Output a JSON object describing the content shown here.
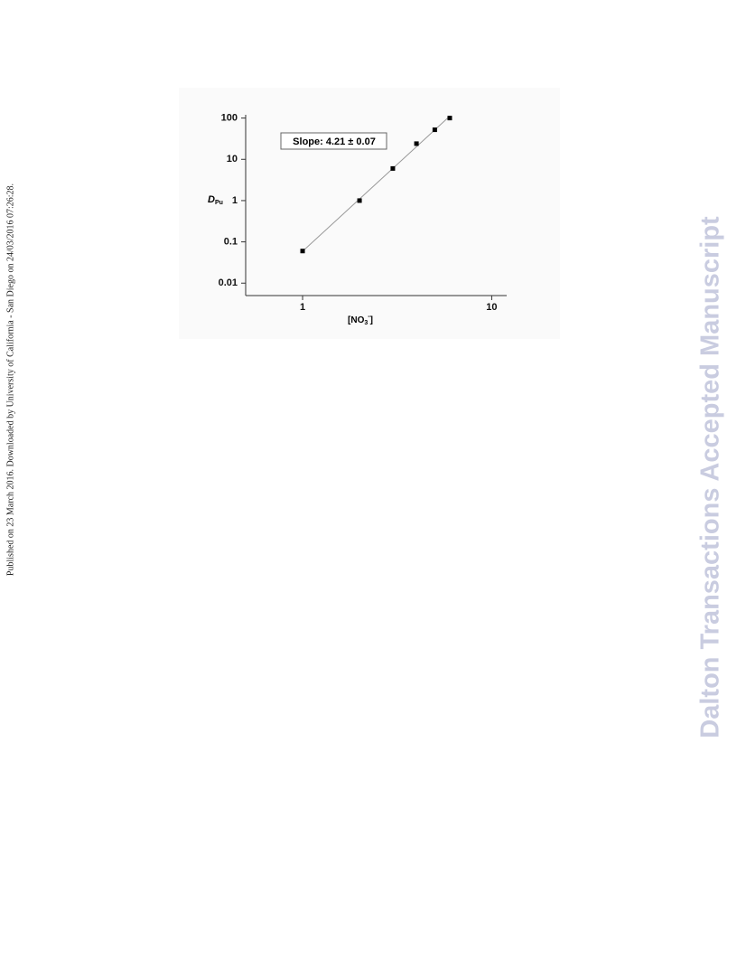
{
  "side_note": "Published on 23 March 2016. Downloaded by University of California - San Diego on 24/03/2016 07:26:28.",
  "watermark": "Dalton Transactions Accepted Manuscript",
  "chart_data": {
    "type": "scatter",
    "annotation": "Slope: 4.21 ± 0.07",
    "ylabel": "D",
    "ylabel_sub": "Pu",
    "xlabel_parts": [
      "[NO",
      "3",
      "-",
      "]"
    ],
    "x": [
      1,
      2,
      3,
      4,
      5,
      6
    ],
    "series": [
      {
        "color": "#000000",
        "values": [
          0.06,
          1,
          6,
          24,
          52,
          100
        ]
      }
    ],
    "xlim": [
      0.5,
      12
    ],
    "ylim": [
      0.005,
      120
    ],
    "xticks": [
      1,
      10
    ],
    "yticks": [
      100,
      10,
      1,
      0.1,
      0.01
    ],
    "xscale": "log",
    "yscale": "log",
    "fit_line_color": "#999999"
  }
}
